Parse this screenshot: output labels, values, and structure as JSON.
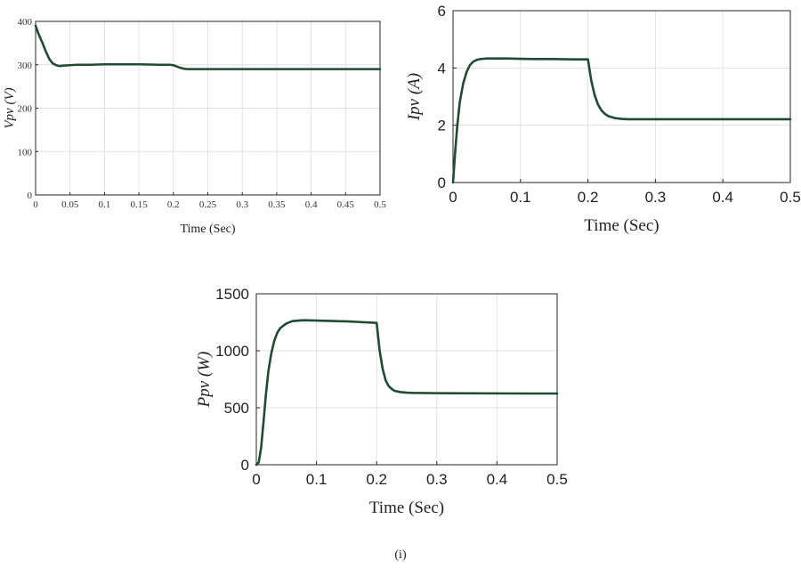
{
  "caption": "(i)",
  "chart_data": [
    {
      "id": "vpv",
      "type": "line",
      "xlabel": "Time (Sec)",
      "ylabel": "Vpv (V)",
      "xlim": [
        0,
        0.5
      ],
      "ylim": [
        0,
        400
      ],
      "xticks": [
        "0",
        "0.05",
        "0.1",
        "0.15",
        "0.2",
        "0.25",
        "0.3",
        "0.35",
        "0.4",
        "0.45",
        "0.5"
      ],
      "yticks": [
        "0",
        "100",
        "200",
        "300",
        "400"
      ],
      "grid": true,
      "color": "#1f4a33",
      "series": [
        {
          "x": [
            0,
            0.004,
            0.01,
            0.015,
            0.02,
            0.025,
            0.03,
            0.035,
            0.04,
            0.05,
            0.06,
            0.08,
            0.1,
            0.12,
            0.15,
            0.18,
            0.195,
            0.2,
            0.205,
            0.21,
            0.215,
            0.22,
            0.23,
            0.25,
            0.3,
            0.35,
            0.4,
            0.45,
            0.5
          ],
          "y": [
            390,
            372,
            350,
            330,
            313,
            303,
            299,
            297,
            298,
            299,
            300,
            300,
            301,
            301,
            301,
            300,
            300,
            299,
            296,
            293,
            291,
            290,
            290,
            290,
            290,
            290,
            290,
            290,
            290
          ]
        }
      ]
    },
    {
      "id": "ipv",
      "type": "line",
      "xlabel": "Time (Sec)",
      "ylabel": "Ipv (A)",
      "xlim": [
        0,
        0.5
      ],
      "ylim": [
        0,
        6
      ],
      "xticks": [
        "0",
        "0.1",
        "0.2",
        "0.3",
        "0.4",
        "0.5"
      ],
      "yticks": [
        "0",
        "2",
        "4",
        "6"
      ],
      "grid": true,
      "color": "#1f4a33",
      "series": [
        {
          "x": [
            0,
            0.003,
            0.006,
            0.01,
            0.015,
            0.02,
            0.025,
            0.03,
            0.035,
            0.04,
            0.05,
            0.06,
            0.08,
            0.1,
            0.12,
            0.15,
            0.18,
            0.2,
            0.205,
            0.21,
            0.215,
            0.22,
            0.225,
            0.23,
            0.24,
            0.25,
            0.26,
            0.3,
            0.35,
            0.4,
            0.45,
            0.5
          ],
          "y": [
            0,
            1.0,
            1.9,
            2.8,
            3.45,
            3.85,
            4.1,
            4.22,
            4.28,
            4.31,
            4.33,
            4.33,
            4.33,
            4.32,
            4.31,
            4.31,
            4.3,
            4.3,
            3.55,
            3.05,
            2.72,
            2.52,
            2.4,
            2.32,
            2.25,
            2.22,
            2.21,
            2.21,
            2.21,
            2.21,
            2.21,
            2.21
          ]
        }
      ]
    },
    {
      "id": "ppv",
      "type": "line",
      "xlabel": "Time (Sec)",
      "ylabel": "Ppv (W)",
      "xlim": [
        0,
        0.5
      ],
      "ylim": [
        0,
        1500
      ],
      "xticks": [
        "0",
        "0.1",
        "0.2",
        "0.3",
        "0.4",
        "0.5"
      ],
      "yticks": [
        "0",
        "500",
        "1000",
        "1500"
      ],
      "grid": true,
      "color": "#1f4a33",
      "series": [
        {
          "x": [
            0,
            0.004,
            0.008,
            0.012,
            0.016,
            0.02,
            0.025,
            0.03,
            0.035,
            0.04,
            0.05,
            0.06,
            0.07,
            0.08,
            0.1,
            0.12,
            0.15,
            0.18,
            0.2,
            0.205,
            0.21,
            0.215,
            0.22,
            0.225,
            0.23,
            0.24,
            0.25,
            0.26,
            0.3,
            0.35,
            0.4,
            0.45,
            0.5
          ],
          "y": [
            0,
            20,
            150,
            380,
            620,
            820,
            980,
            1090,
            1160,
            1200,
            1240,
            1260,
            1265,
            1268,
            1265,
            1262,
            1258,
            1250,
            1245,
            1000,
            840,
            740,
            690,
            665,
            648,
            637,
            632,
            630,
            628,
            627,
            626,
            625,
            625
          ]
        }
      ]
    }
  ]
}
